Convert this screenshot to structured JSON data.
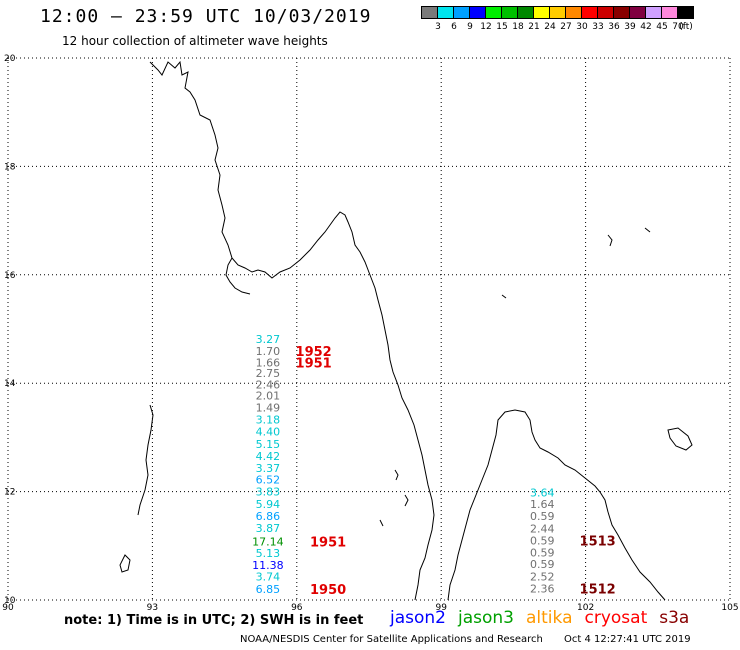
{
  "header": {
    "title": "12:00 — 23:59 UTC 10/03/2019",
    "subtitle": "12 hour collection of altimeter wave heights"
  },
  "legend": {
    "unit": "(ft)",
    "items": [
      {
        "label": "3",
        "color": "#7a7a7a"
      },
      {
        "label": "6",
        "color": "#00e5ee"
      },
      {
        "label": "9",
        "color": "#00a0ff"
      },
      {
        "label": "12",
        "color": "#0000ff"
      },
      {
        "label": "15",
        "color": "#00ee00"
      },
      {
        "label": "18",
        "color": "#00c000"
      },
      {
        "label": "21",
        "color": "#008800"
      },
      {
        "label": "24",
        "color": "#ffff00"
      },
      {
        "label": "27",
        "color": "#ffcc00"
      },
      {
        "label": "30",
        "color": "#ff8800"
      },
      {
        "label": "33",
        "color": "#ff0000"
      },
      {
        "label": "36",
        "color": "#cc0000"
      },
      {
        "label": "39",
        "color": "#880000"
      },
      {
        "label": "42",
        "color": "#800040"
      },
      {
        "label": "45",
        "color": "#d0a0ff"
      },
      {
        "label": "70",
        "color": "#ff88dd"
      },
      {
        "label": "",
        "color": "#000000"
      }
    ]
  },
  "axes": {
    "lon_labels": [
      "90",
      "93",
      "96",
      "99",
      "102",
      "105"
    ],
    "lat_labels": [
      "20",
      "18",
      "16",
      "14",
      "12",
      "10"
    ],
    "lon_range": [
      90,
      105
    ],
    "lat_range": [
      10,
      20
    ]
  },
  "observations": [
    {
      "lon": 95.4,
      "lat": 14.82,
      "value": "3.27",
      "color": "#00c8d0"
    },
    {
      "lon": 95.4,
      "lat": 14.59,
      "value": "1.70",
      "color": "#707070"
    },
    {
      "lon": 95.4,
      "lat": 14.38,
      "value": "1.66",
      "color": "#707070"
    },
    {
      "lon": 95.4,
      "lat": 14.19,
      "value": "2.75",
      "color": "#707070"
    },
    {
      "lon": 95.4,
      "lat": 13.98,
      "value": "2.46",
      "color": "#707070"
    },
    {
      "lon": 95.4,
      "lat": 13.77,
      "value": "2.01",
      "color": "#707070"
    },
    {
      "lon": 95.4,
      "lat": 13.55,
      "value": "1.49",
      "color": "#707070"
    },
    {
      "lon": 95.4,
      "lat": 13.33,
      "value": "3.18",
      "color": "#00c8d0"
    },
    {
      "lon": 95.4,
      "lat": 13.11,
      "value": "4.40",
      "color": "#00c8d0"
    },
    {
      "lon": 95.4,
      "lat": 12.88,
      "value": "5.15",
      "color": "#00c8d0"
    },
    {
      "lon": 95.4,
      "lat": 12.66,
      "value": "4.42",
      "color": "#00c8d0"
    },
    {
      "lon": 95.4,
      "lat": 12.44,
      "value": "3.37",
      "color": "#00c8d0"
    },
    {
      "lon": 95.4,
      "lat": 12.22,
      "value": "6.52",
      "color": "#00a0ff"
    },
    {
      "lon": 95.4,
      "lat": 12.0,
      "value": "3.83",
      "color": "#00c8d0"
    },
    {
      "lon": 95.4,
      "lat": 11.77,
      "value": "5.94",
      "color": "#00c8d0"
    },
    {
      "lon": 95.4,
      "lat": 11.55,
      "value": "6.86",
      "color": "#00a0ff"
    },
    {
      "lon": 95.4,
      "lat": 11.33,
      "value": "3.87",
      "color": "#00c8d0"
    },
    {
      "lon": 95.4,
      "lat": 11.08,
      "value": "17.14",
      "color": "#009000"
    },
    {
      "lon": 95.4,
      "lat": 10.87,
      "value": "5.13",
      "color": "#00c8d0"
    },
    {
      "lon": 95.4,
      "lat": 10.65,
      "value": "11.38",
      "color": "#0000ff"
    },
    {
      "lon": 95.4,
      "lat": 10.43,
      "value": "3.74",
      "color": "#00c8d0"
    },
    {
      "lon": 95.4,
      "lat": 10.2,
      "value": "6.85",
      "color": "#00a0ff"
    },
    {
      "lon": 101.1,
      "lat": 11.98,
      "value": "3.64",
      "color": "#00c8d0"
    },
    {
      "lon": 101.1,
      "lat": 11.77,
      "value": "1.64",
      "color": "#707070"
    },
    {
      "lon": 101.1,
      "lat": 11.55,
      "value": "0.59",
      "color": "#707070"
    },
    {
      "lon": 101.1,
      "lat": 11.32,
      "value": "2.44",
      "color": "#707070"
    },
    {
      "lon": 101.1,
      "lat": 11.1,
      "value": "0.59",
      "color": "#707070"
    },
    {
      "lon": 101.1,
      "lat": 10.88,
      "value": "0.59",
      "color": "#707070"
    },
    {
      "lon": 101.1,
      "lat": 10.66,
      "value": "0.59",
      "color": "#707070"
    },
    {
      "lon": 101.1,
      "lat": 10.43,
      "value": "2.52",
      "color": "#707070"
    },
    {
      "lon": 101.1,
      "lat": 10.21,
      "value": "2.36",
      "color": "#707070"
    }
  ],
  "times": [
    {
      "lon": 96.35,
      "lat": 14.59,
      "value": "1952",
      "color": "#e00000"
    },
    {
      "lon": 96.35,
      "lat": 14.38,
      "value": "1951",
      "color": "#e00000"
    },
    {
      "lon": 96.65,
      "lat": 11.08,
      "value": "1951",
      "color": "#e00000"
    },
    {
      "lon": 96.65,
      "lat": 10.2,
      "value": "1950",
      "color": "#e00000"
    },
    {
      "lon": 102.25,
      "lat": 11.1,
      "value": "1513",
      "color": "#7a0000"
    },
    {
      "lon": 102.25,
      "lat": 10.21,
      "value": "1512",
      "color": "#7a0000"
    }
  ],
  "note": "note:  1) Time is in UTC;  2) SWH is in feet",
  "satellites": [
    {
      "name": "jason2",
      "color": "#0000ff"
    },
    {
      "name": "jason3",
      "color": "#00a000"
    },
    {
      "name": "altika",
      "color": "#ff9900"
    },
    {
      "name": "cryosat",
      "color": "#ff0000"
    },
    {
      "name": "s3a",
      "color": "#880000"
    }
  ],
  "footer": {
    "source": "NOAA/NESDIS Center for Satellite Applications and Research",
    "timestamp": "Oct  4 12:27:41 UTC 2019"
  }
}
